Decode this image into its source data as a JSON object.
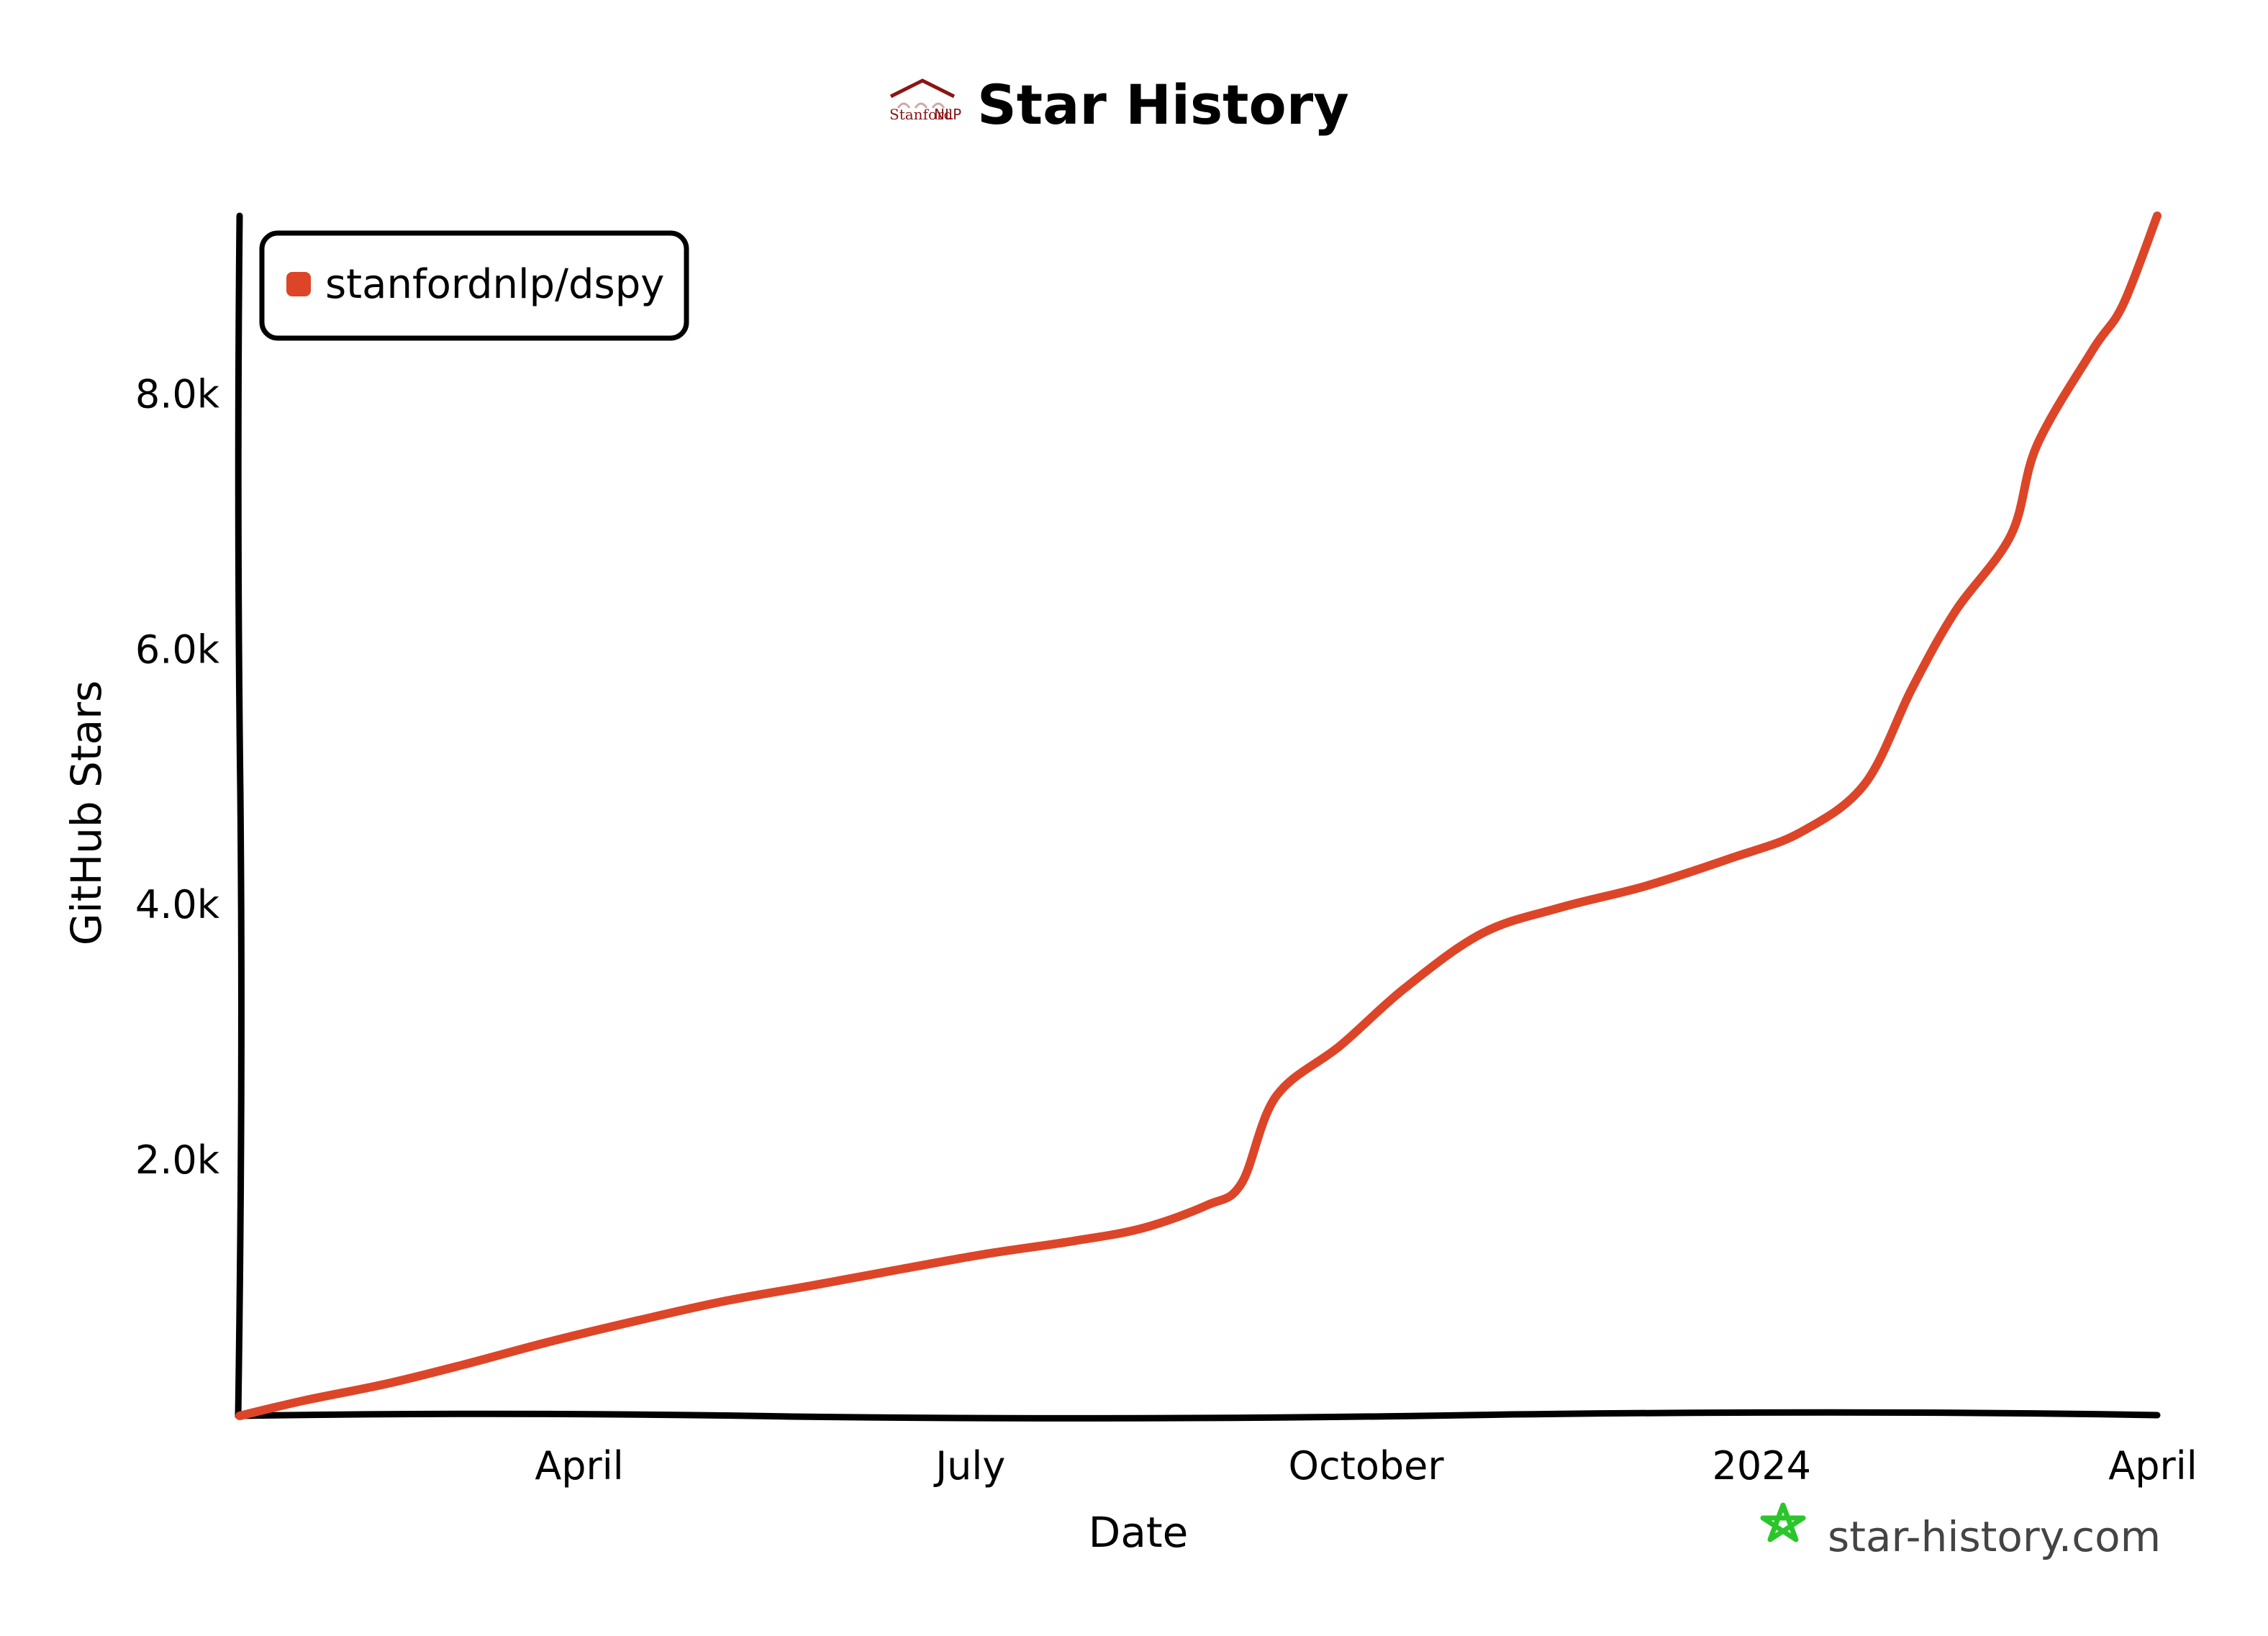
{
  "header": {
    "title": "Star History",
    "logo_text_left": "Stanford",
    "logo_text_right": "NLP"
  },
  "watermark": {
    "text": "star-history.com",
    "icon": "star-icon"
  },
  "colors": {
    "series": "#dd4528",
    "axis": "#000000",
    "logo": "#8c1515",
    "watermark_icon": "#2bc62b"
  },
  "chart_data": {
    "type": "line",
    "title": "Star History",
    "xlabel": "Date",
    "ylabel": "GitHub Stars",
    "x_axis_type": "date",
    "xlim": [
      "2023-01-12",
      "2024-04-02"
    ],
    "ylim": [
      0,
      9400
    ],
    "x_ticks": [
      {
        "label": "April",
        "date": "2023-04-01"
      },
      {
        "label": "July",
        "date": "2023-07-01"
      },
      {
        "label": "October",
        "date": "2023-10-01"
      },
      {
        "label": "2024",
        "date": "2024-01-01"
      },
      {
        "label": "April",
        "date": "2024-04-01"
      }
    ],
    "y_ticks": [
      {
        "label": "2.0k",
        "value": 2000
      },
      {
        "label": "4.0k",
        "value": 4000
      },
      {
        "label": "6.0k",
        "value": 6000
      },
      {
        "label": "8.0k",
        "value": 8000
      }
    ],
    "legend": {
      "position": "top-left"
    },
    "grid": false,
    "series": [
      {
        "name": "stanfordnlp/dspy",
        "points": [
          [
            "2023-01-12",
            0
          ],
          [
            "2023-01-27",
            120
          ],
          [
            "2023-02-15",
            250
          ],
          [
            "2023-03-05",
            400
          ],
          [
            "2023-03-25",
            580
          ],
          [
            "2023-04-15",
            750
          ],
          [
            "2023-05-05",
            900
          ],
          [
            "2023-05-25",
            1020
          ],
          [
            "2023-06-15",
            1150
          ],
          [
            "2023-07-05",
            1270
          ],
          [
            "2023-07-25",
            1370
          ],
          [
            "2023-08-10",
            1470
          ],
          [
            "2023-08-25",
            1650
          ],
          [
            "2023-09-02",
            1820
          ],
          [
            "2023-09-10",
            2500
          ],
          [
            "2023-09-25",
            2900
          ],
          [
            "2023-10-10",
            3350
          ],
          [
            "2023-10-28",
            3780
          ],
          [
            "2023-11-15",
            3980
          ],
          [
            "2023-12-05",
            4150
          ],
          [
            "2023-12-25",
            4370
          ],
          [
            "2024-01-10",
            4570
          ],
          [
            "2024-01-25",
            4950
          ],
          [
            "2024-02-05",
            5700
          ],
          [
            "2024-02-15",
            6300
          ],
          [
            "2024-02-28",
            6900
          ],
          [
            "2024-03-05",
            7600
          ],
          [
            "2024-03-18",
            8350
          ],
          [
            "2024-03-25",
            8700
          ],
          [
            "2024-04-02",
            9400
          ]
        ]
      }
    ]
  }
}
